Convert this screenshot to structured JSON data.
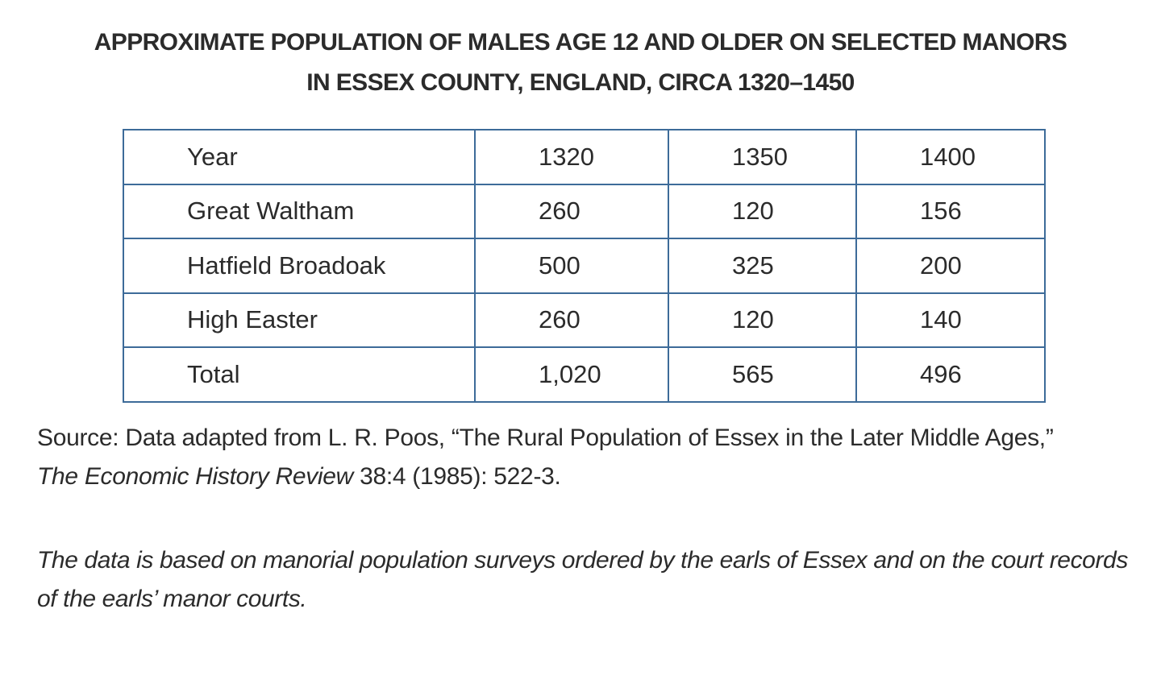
{
  "title_lines": [
    "APPROXIMATE POPULATION OF MALES AGE 12 AND OLDER ON SELECTED MANORS",
    "IN ESSEX COUNTY, ENGLAND, CIRCA 1320–1450"
  ],
  "table": {
    "rows": [
      [
        "Year",
        "1320",
        "1350",
        "1400"
      ],
      [
        "Great Waltham",
        "260",
        "120",
        "156"
      ],
      [
        "Hatfield Broadoak",
        "500",
        "325",
        "200"
      ],
      [
        "High Easter",
        "260",
        "120",
        "140"
      ],
      [
        "Total",
        "1,020",
        "565",
        "496"
      ]
    ]
  },
  "source": {
    "text": "Source: Data adapted from L. R. Poos, “The Rural Population of Essex in the Later Middle Ages,”",
    "journal": "The Economic History Review",
    "citation": "38:4 (1985): 522-3."
  },
  "note": "The data is based on manorial population surveys ordered by the earls of Essex and on the court records of the earls’ manor courts."
}
